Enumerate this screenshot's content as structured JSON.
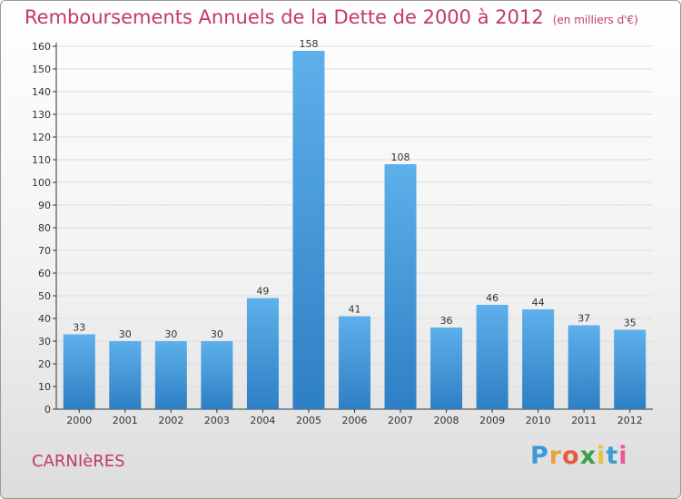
{
  "header": {
    "title": "Remboursements Annuels de la Dette de 2000 à 2012",
    "subtitle": "(en milliers d'€)"
  },
  "footer": {
    "location": "CARNIèRES",
    "brand_letters": [
      "P",
      "r",
      "o",
      "x",
      "i",
      "t",
      "i"
    ],
    "brand_colors": [
      "#3a9ad9",
      "#e8a33c",
      "#e85a3c",
      "#3aa04a",
      "#e8c23c",
      "#3a9ad9",
      "#e85a9a"
    ]
  },
  "colors": {
    "bar": "#3d93dc",
    "bar_light": "#5aaee9",
    "title": "#c33a5e"
  },
  "chart_data": {
    "type": "bar",
    "title": "Remboursements Annuels de la Dette de 2000 à 2012",
    "subtitle": "(en milliers d'€)",
    "categories": [
      "2000",
      "2001",
      "2002",
      "2003",
      "2004",
      "2005",
      "2006",
      "2007",
      "2008",
      "2009",
      "2010",
      "2011",
      "2012"
    ],
    "values": [
      33,
      30,
      30,
      30,
      49,
      158,
      41,
      108,
      36,
      46,
      44,
      37,
      35
    ],
    "ylim": [
      0,
      160
    ],
    "yticks": [
      0,
      10,
      20,
      30,
      40,
      50,
      60,
      70,
      80,
      90,
      100,
      110,
      120,
      130,
      140,
      150,
      160
    ],
    "grid": true
  }
}
